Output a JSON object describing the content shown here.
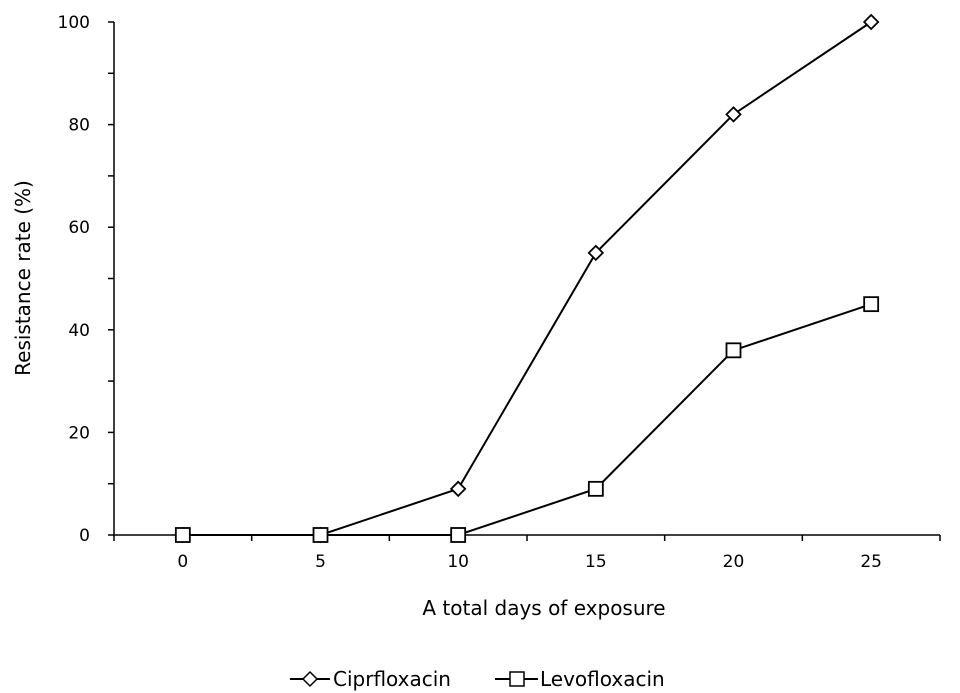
{
  "chart_data": {
    "type": "line",
    "title": "",
    "xlabel": "A total days of exposure",
    "ylabel": "Resistance rate (%)",
    "x": [
      0,
      5,
      10,
      15,
      20,
      25
    ],
    "x_ticks": [
      0,
      5,
      10,
      15,
      20,
      25
    ],
    "y_ticks": [
      0,
      20,
      40,
      60,
      80,
      100
    ],
    "xlim": [
      -2.5,
      27.5
    ],
    "ylim": [
      0,
      100
    ],
    "grid": false,
    "legend_position": "bottom",
    "series": [
      {
        "name": "Ciprfloxacin",
        "marker": "diamond",
        "color": "#000000",
        "values": [
          0,
          0,
          9,
          55,
          82,
          100
        ]
      },
      {
        "name": "Levofloxacin",
        "marker": "square",
        "color": "#000000",
        "values": [
          0,
          0,
          0,
          9,
          36,
          45
        ]
      }
    ]
  }
}
